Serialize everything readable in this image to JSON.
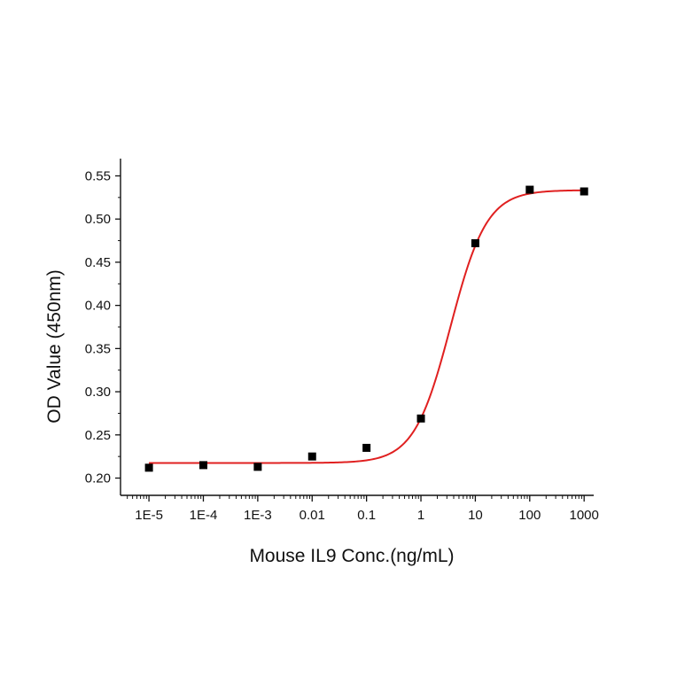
{
  "chart_data": {
    "type": "scatter",
    "title": "",
    "xlabel": "Mouse IL9 Conc.(ng/mL)",
    "ylabel": "OD Value (450nm)",
    "x_scale": "log",
    "xlim": [
      3e-06,
      1500
    ],
    "ylim": [
      0.18,
      0.57
    ],
    "grid": false,
    "x_ticks": [
      1e-05,
      0.0001,
      0.001,
      0.01,
      0.1,
      1,
      10,
      100,
      1000
    ],
    "x_tick_labels": [
      "1E-5",
      "1E-4",
      "1E-3",
      "0.01",
      "0.1",
      "1",
      "10",
      "100",
      "1000"
    ],
    "y_ticks": [
      0.2,
      0.25,
      0.3,
      0.35,
      0.4,
      0.45,
      0.5,
      0.55
    ],
    "y_tick_labels": [
      "0.20",
      "0.25",
      "0.30",
      "0.35",
      "0.40",
      "0.45",
      "0.50",
      "0.55"
    ],
    "series": [
      {
        "type": "scatter",
        "marker": "square",
        "color": "#000000",
        "x": [
          1e-05,
          0.0001,
          0.001,
          0.01,
          0.1,
          1,
          10,
          100,
          1000
        ],
        "y": [
          0.212,
          0.215,
          0.213,
          0.225,
          0.235,
          0.269,
          0.472,
          0.534,
          0.532
        ]
      },
      {
        "type": "line",
        "color": "#e02020",
        "fit": "4PL",
        "bottom": 0.2175,
        "top": 0.5335,
        "ec50": 3.5,
        "hill": 1.3
      }
    ]
  }
}
